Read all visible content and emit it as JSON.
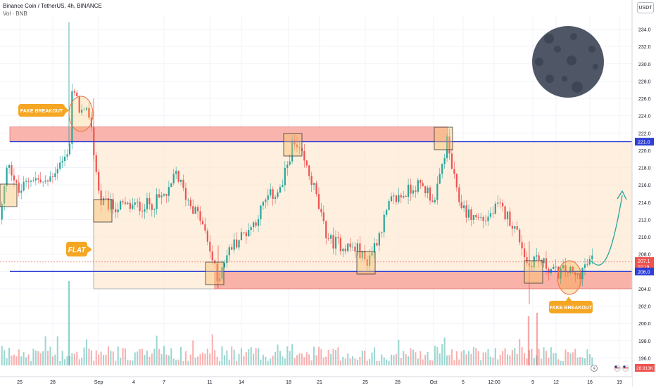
{
  "header": {
    "title": "Binance Coin / TetherUS, 4h, BINANCE",
    "volume_label": "Vol · BNB",
    "unit_button": "USDT"
  },
  "annotations": {
    "fake_breakout_top": "FAKE BREAKOUT",
    "flat": "FLAT",
    "fake_breakout_bottom": "FAKE BREAKOUT"
  },
  "colors": {
    "up": "#26a69a",
    "down": "#ef5350",
    "level_line": "#2f3fd6",
    "zone": "#f7a399",
    "range_fill": "#fde9d4",
    "label_bg": "#f5a623",
    "arrow": "#26a69a",
    "moon": "#4f5767"
  },
  "chart_data": {
    "type": "candlestick",
    "title": "Binance Coin / TetherUS, 4h, BINANCE",
    "xlabel": "",
    "ylabel": "",
    "ylim": [
      194,
      236
    ],
    "y_ticks": [
      196.0,
      198.0,
      200.0,
      202.0,
      204.0,
      206.0,
      208.0,
      210.0,
      212.0,
      214.0,
      216.0,
      218.0,
      220.0,
      222.0,
      224.0,
      226.0,
      228.0,
      230.0,
      232.0,
      234.0
    ],
    "x_ticks": [
      "25",
      "28",
      "Sep",
      "4",
      "7",
      "11",
      "14",
      "18",
      "21",
      "25",
      "28",
      "Oct",
      "5",
      "12:00",
      "9",
      "12",
      "16",
      "19"
    ],
    "grid": true,
    "levels": [
      {
        "price": 221.0,
        "label": "221.0"
      },
      {
        "price": 206.0,
        "label": "206.0"
      }
    ],
    "price_tags": [
      {
        "price": 207.1,
        "label": "207.1",
        "sublabel": "02:19"
      }
    ],
    "volume_tag": "28.913K",
    "zones": [
      {
        "from": 221.0,
        "to": 222.7
      },
      {
        "from": 204.0,
        "to": 206.0
      }
    ],
    "range": {
      "from": 204.0,
      "to": 221.0
    }
  }
}
